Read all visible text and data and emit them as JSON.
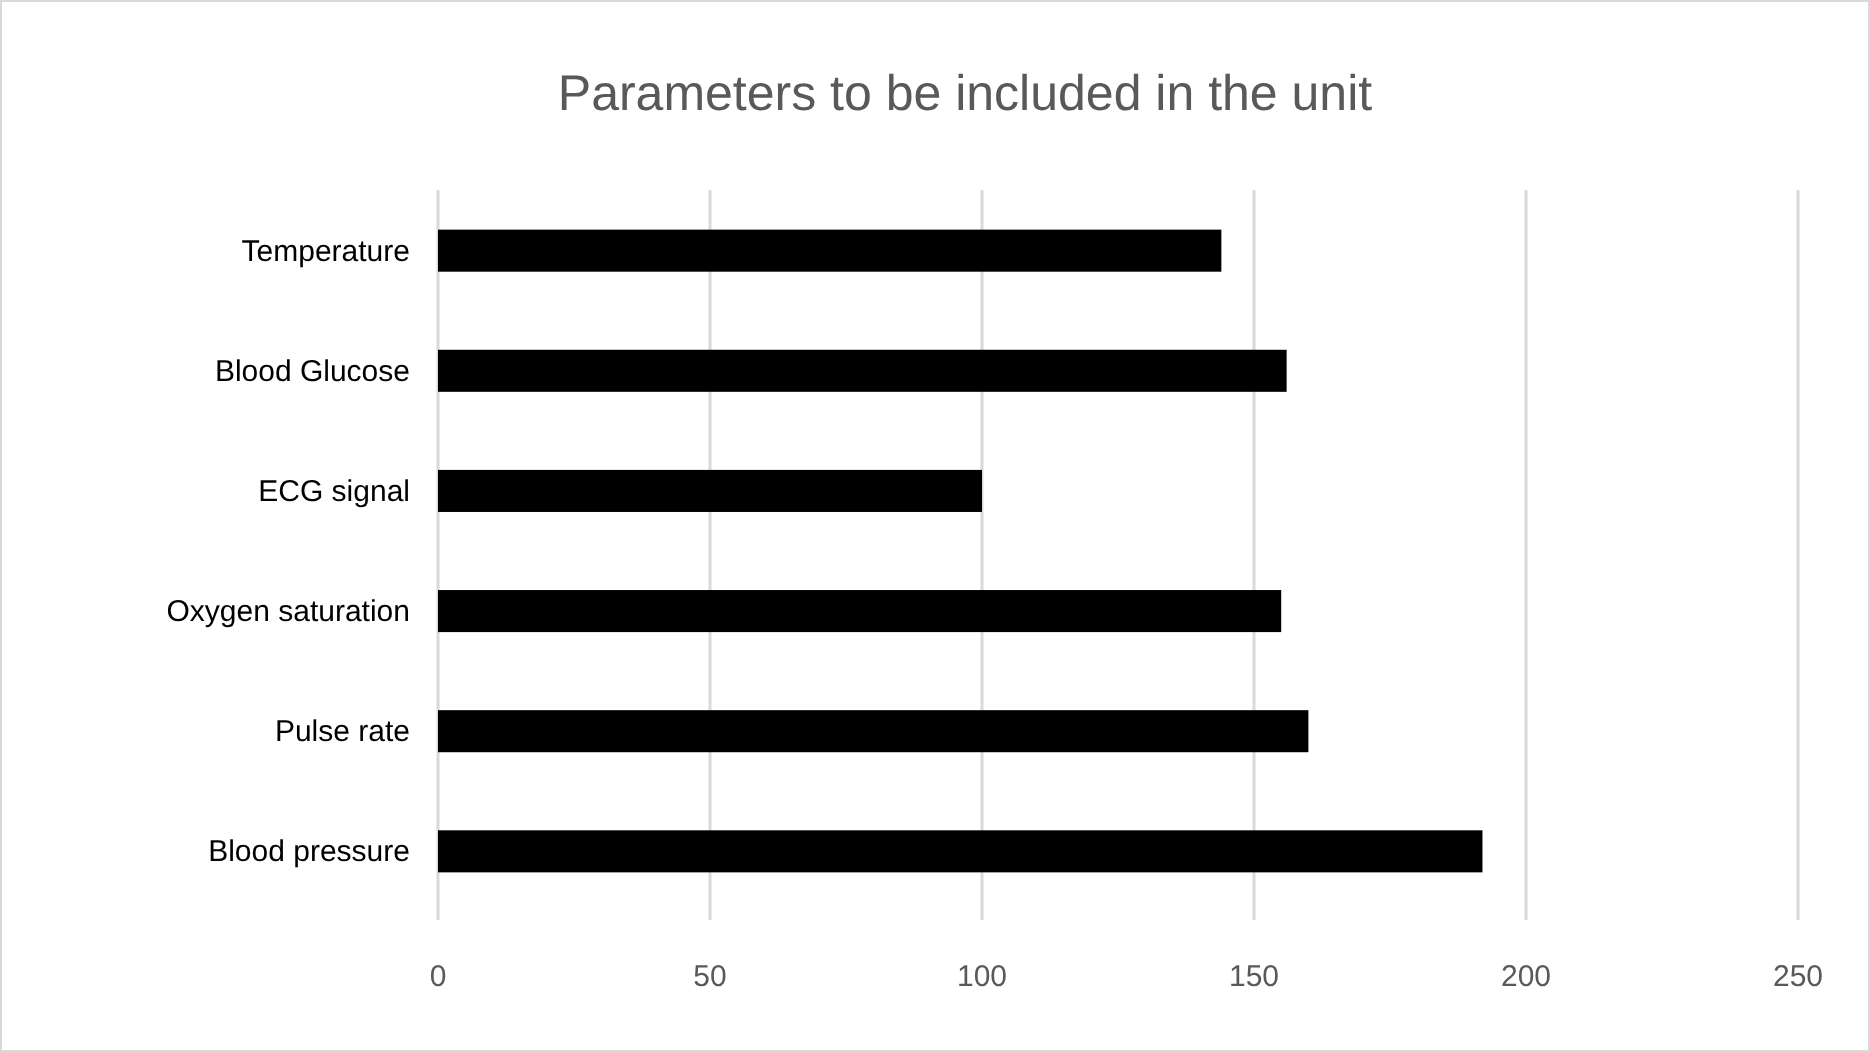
{
  "chart_data": {
    "type": "bar",
    "orientation": "horizontal",
    "title": "Parameters to be included in the unit",
    "categories": [
      "Temperature",
      "Blood Glucose",
      "ECG signal",
      "Oxygen saturation",
      "Pulse rate",
      "Blood pressure"
    ],
    "values": [
      144,
      156,
      100,
      155,
      160,
      192
    ],
    "color": "#000000",
    "xlim": [
      0,
      250
    ],
    "xticks": [
      0,
      50,
      100,
      150,
      200,
      250
    ],
    "grid": "x"
  }
}
